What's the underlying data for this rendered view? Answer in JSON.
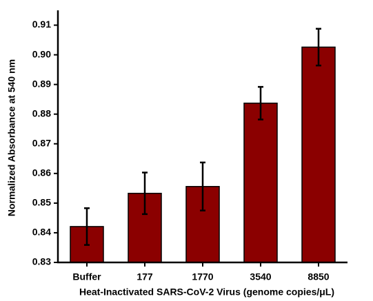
{
  "chart_data": {
    "type": "bar",
    "categories": [
      "Buffer",
      "177",
      "1770",
      "3540",
      "8850"
    ],
    "values": [
      0.8421,
      0.8533,
      0.8556,
      0.8837,
      0.9026
    ],
    "errors": [
      0.0062,
      0.007,
      0.0081,
      0.0055,
      0.0062
    ],
    "color": "#8b0000",
    "ylim": [
      0.83,
      0.915
    ],
    "yticks": [
      0.83,
      0.84,
      0.85,
      0.86,
      0.87,
      0.88,
      0.89,
      {
        "value": 0.9,
        "label": "0.90"
      },
      0.91
    ],
    "x_label": "Heat-Inactivated SARS-CoV-2 Virus (genome copies/μL)",
    "y_label": "Normalized Absorbance at 540 nm"
  }
}
